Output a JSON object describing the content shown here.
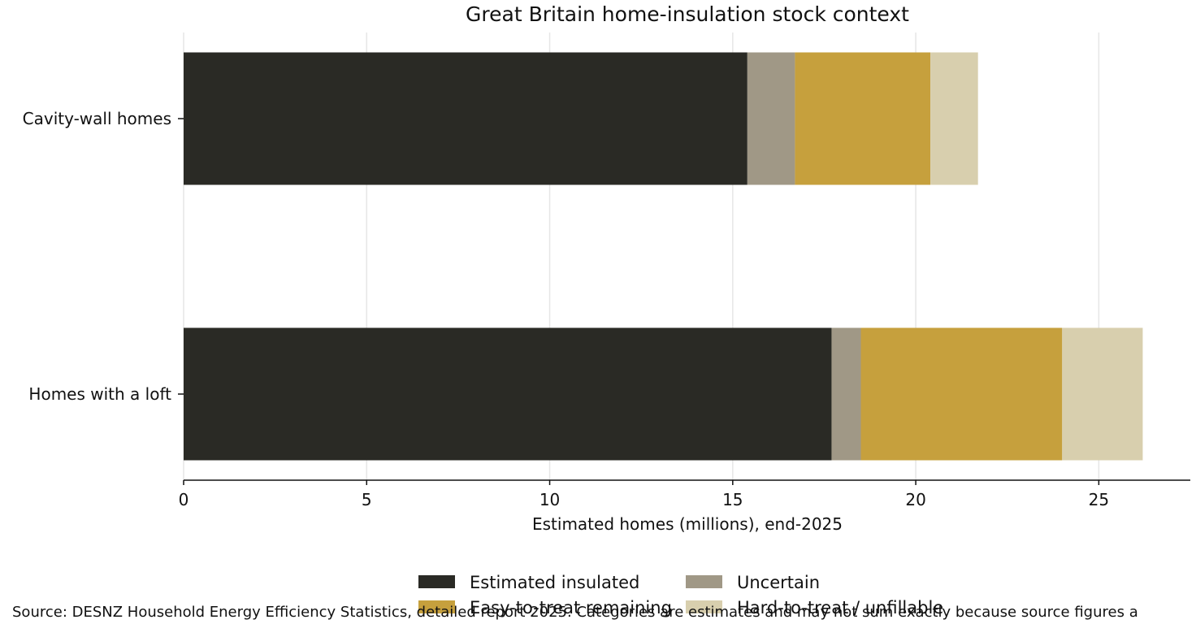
{
  "chart_data": {
    "type": "bar",
    "orientation": "horizontal",
    "stacked": true,
    "title": "Great Britain home-insulation stock context",
    "xlabel": "Estimated homes (millions), end-2025",
    "ylabel": "",
    "categories": [
      "Cavity-wall homes",
      "Homes with a loft"
    ],
    "xlim": [
      0,
      27.5
    ],
    "x_ticks": [
      0,
      5,
      10,
      15,
      20,
      25
    ],
    "grid": "vertical",
    "legend": "bottom-center",
    "series": [
      {
        "name": "Estimated insulated",
        "color": "#2a2a25",
        "values": [
          15.4,
          17.7
        ]
      },
      {
        "name": "Uncertain",
        "color": "#a09886",
        "values": [
          1.3,
          0.8
        ]
      },
      {
        "name": "Easy-to-treat remaining",
        "color": "#c6a03d",
        "values": [
          3.7,
          5.5
        ]
      },
      {
        "name": "Hard-to-treat / unfillable",
        "color": "#d8cfae",
        "values": [
          1.3,
          2.2
        ]
      }
    ]
  },
  "source_note": "Source: DESNZ Household Energy Efficiency Statistics, detailed report 2025. Categories are estimates and may not sum exactly because source figures a"
}
